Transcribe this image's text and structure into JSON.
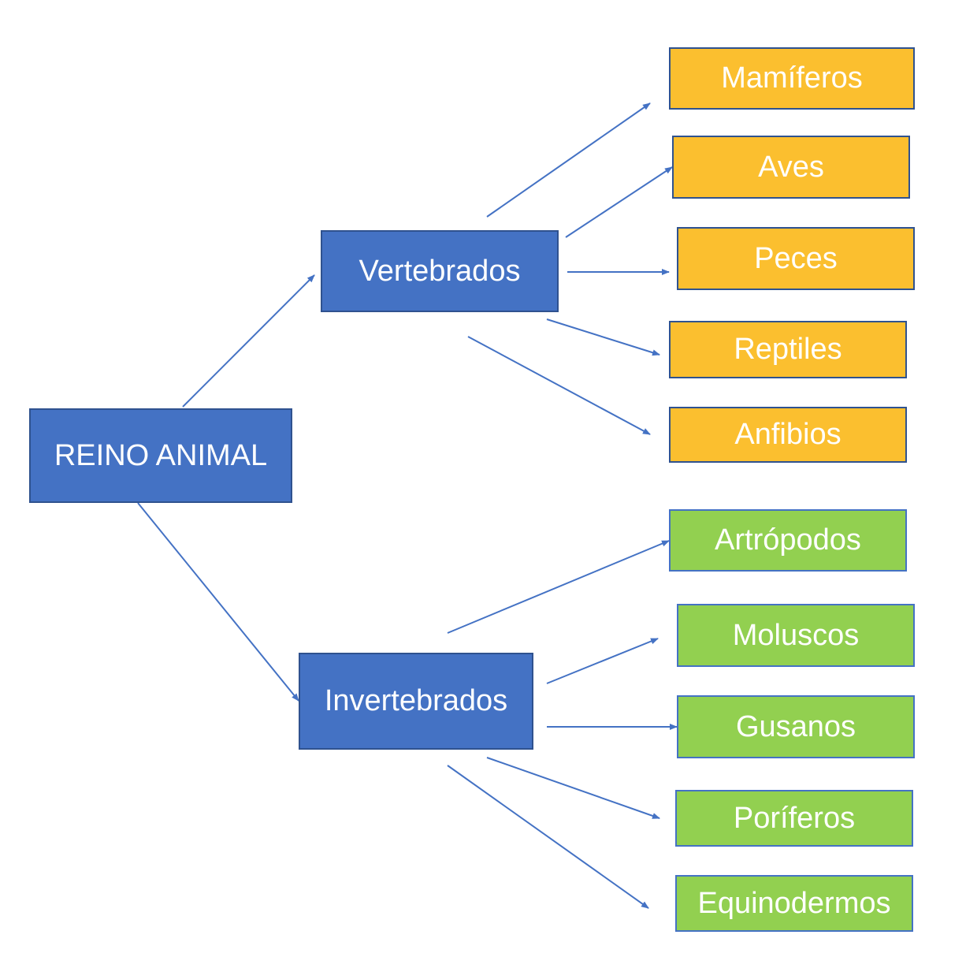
{
  "root": {
    "label": "REINO ANIMAL"
  },
  "vertebrados": {
    "label": "Vertebrados",
    "children": [
      "Mamíferos",
      "Aves",
      "Peces",
      "Reptiles",
      "Anfibios"
    ]
  },
  "invertebrados": {
    "label": "Invertebrados",
    "children": [
      "Artrópodos",
      "Moluscos",
      "Gusanos",
      "Poríferos",
      "Equinodermos"
    ]
  },
  "colors": {
    "main_node": "#4472c4",
    "vertebrate_leaf": "#fbbf2f",
    "invertebrate_leaf": "#92d050",
    "arrow": "#4472c4"
  }
}
